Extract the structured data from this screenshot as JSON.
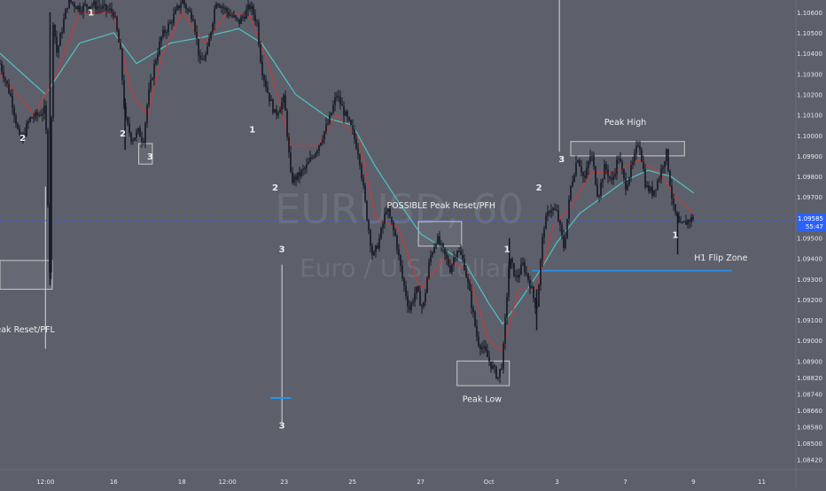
{
  "watermark": {
    "symbol": "EURUSD, 60",
    "name": "Euro / U.S. Dollar"
  },
  "price_tag": {
    "price": "1.09585",
    "countdown": "55:47",
    "color": "#2962ff"
  },
  "colors": {
    "background": "#5d606b",
    "candle": "#131722",
    "ema_fast": "#c23b3b",
    "ema_slow": "#4fc3c3",
    "level_line": "#2196f3",
    "box_border": "#c9c9c9",
    "label_text": "#eeeeee",
    "axis_text": "#e6e6e6"
  },
  "annotations": {
    "peak_reset_pfl": "Peak Reset/PFL",
    "possible_peak": "POSSIBLE Peak Reset/PFH",
    "peak_high": "Peak High",
    "peak_low": "Peak Low",
    "h1_flip_zone": "H1 Flip Zone"
  },
  "wave_labels": [
    {
      "text": "2",
      "x": 0.5,
      "y": 1.09973
    },
    {
      "text": "1",
      "x": 3.5,
      "y": 1.10585
    },
    {
      "text": "2",
      "x": 4.9,
      "y": 1.09995
    },
    {
      "text": "3",
      "x": 6.1,
      "y": 1.09883
    },
    {
      "text": "1",
      "x": 10.6,
      "y": 1.10015
    },
    {
      "text": "2",
      "x": 11.6,
      "y": 1.0973
    },
    {
      "text": "3",
      "x": 11.9,
      "y": 1.0943
    },
    {
      "text": "3",
      "x": 11.9,
      "y": 1.0857
    },
    {
      "text": "2",
      "x": 23.2,
      "y": 1.0973
    },
    {
      "text": "1",
      "x": 21.8,
      "y": 1.0943
    },
    {
      "text": "3",
      "x": 24.2,
      "y": 1.0987
    },
    {
      "text": "1",
      "x": 29.2,
      "y": 1.095
    }
  ],
  "chart_data": {
    "type": "candlestick",
    "x_ticks": [
      {
        "label": "12:00",
        "x": 1.5
      },
      {
        "label": "16",
        "x": 4.5
      },
      {
        "label": "18",
        "x": 7.5
      },
      {
        "label": "12:00",
        "x": 9.5
      },
      {
        "label": "23",
        "x": 12
      },
      {
        "label": "25",
        "x": 15
      },
      {
        "label": "27",
        "x": 18
      },
      {
        "label": "Oct",
        "x": 21
      },
      {
        "label": "3",
        "x": 24
      },
      {
        "label": "7",
        "x": 27
      },
      {
        "label": "9",
        "x": 30
      },
      {
        "label": "11",
        "x": 33
      }
    ],
    "x_range": [
      -0.5,
      34.5
    ],
    "y_range": [
      1.0837,
      1.1066
    ],
    "y_ticks": [
      1.106,
      1.105,
      1.104,
      1.103,
      1.102,
      1.101,
      1.1,
      1.099,
      1.098,
      1.097,
      1.096,
      1.095,
      1.094,
      1.093,
      1.092,
      1.091,
      1.09,
      1.089,
      1.0882,
      1.0874,
      1.0866,
      1.0858,
      1.085,
      1.0842
    ],
    "current_price": 1.09585,
    "price_path": [
      [
        -0.5,
        1.1035
      ],
      [
        0.0,
        1.1018
      ],
      [
        0.4,
        1.0996
      ],
      [
        0.8,
        1.1008
      ],
      [
        1.2,
        1.101
      ],
      [
        1.5,
        1.1013
      ],
      [
        1.7,
        1.0927
      ],
      [
        1.8,
        1.106
      ],
      [
        2.0,
        1.104
      ],
      [
        2.5,
        1.1066
      ],
      [
        3.0,
        1.1062
      ],
      [
        3.5,
        1.1064
      ],
      [
        4.0,
        1.1062
      ],
      [
        4.5,
        1.106
      ],
      [
        4.8,
        1.104
      ],
      [
        5.0,
        1.1008
      ],
      [
        5.3,
        1.0998
      ],
      [
        5.6,
        1.1002
      ],
      [
        5.8,
        1.0997
      ],
      [
        6.0,
        1.1018
      ],
      [
        6.3,
        1.1035
      ],
      [
        6.6,
        1.1048
      ],
      [
        7.0,
        1.1055
      ],
      [
        7.5,
        1.1066
      ],
      [
        7.8,
        1.106
      ],
      [
        8.0,
        1.1058
      ],
      [
        8.3,
        1.1035
      ],
      [
        8.6,
        1.104
      ],
      [
        9.0,
        1.1066
      ],
      [
        9.5,
        1.106
      ],
      [
        10.0,
        1.1055
      ],
      [
        10.5,
        1.1063
      ],
      [
        10.8,
        1.1055
      ],
      [
        11.0,
        1.1033
      ],
      [
        11.3,
        1.102
      ],
      [
        11.6,
        1.101
      ],
      [
        12.0,
        1.1018
      ],
      [
        12.3,
        1.0978
      ],
      [
        12.6,
        1.098
      ],
      [
        13.0,
        1.0985
      ],
      [
        13.5,
        1.0995
      ],
      [
        14.0,
        1.1008
      ],
      [
        14.3,
        1.102
      ],
      [
        14.6,
        1.1012
      ],
      [
        15.0,
        1.1002
      ],
      [
        15.3,
        1.099
      ],
      [
        15.6,
        1.0963
      ],
      [
        15.9,
        1.094
      ],
      [
        16.2,
        1.095
      ],
      [
        16.5,
        1.0965
      ],
      [
        16.9,
        1.095
      ],
      [
        17.2,
        1.093
      ],
      [
        17.5,
        1.0915
      ],
      [
        17.8,
        1.0925
      ],
      [
        18.1,
        1.0915
      ],
      [
        18.4,
        1.094
      ],
      [
        18.7,
        1.095
      ],
      [
        19.0,
        1.0943
      ],
      [
        19.3,
        1.0935
      ],
      [
        19.6,
        1.0945
      ],
      [
        19.9,
        1.0938
      ],
      [
        20.2,
        1.092
      ],
      [
        20.5,
        1.09
      ],
      [
        20.8,
        1.0895
      ],
      [
        21.1,
        1.0888
      ],
      [
        21.4,
        1.0882
      ],
      [
        21.6,
        1.089
      ],
      [
        21.9,
        1.094
      ],
      [
        22.2,
        1.093
      ],
      [
        22.5,
        1.0937
      ],
      [
        22.8,
        1.0928
      ],
      [
        23.1,
        1.0915
      ],
      [
        23.4,
        1.0955
      ],
      [
        23.7,
        1.0965
      ],
      [
        24.0,
        1.0962
      ],
      [
        24.3,
        1.0945
      ],
      [
        24.6,
        1.0975
      ],
      [
        24.9,
        1.099
      ],
      [
        25.2,
        1.0978
      ],
      [
        25.5,
        1.0992
      ],
      [
        25.8,
        1.097
      ],
      [
        26.1,
        1.0985
      ],
      [
        26.4,
        1.0977
      ],
      [
        26.7,
        1.099
      ],
      [
        27.0,
        1.0975
      ],
      [
        27.3,
        1.0985
      ],
      [
        27.6,
        1.0998
      ],
      [
        27.9,
        1.0975
      ],
      [
        28.2,
        1.0972
      ],
      [
        28.5,
        1.098
      ],
      [
        28.8,
        1.0992
      ],
      [
        29.1,
        1.0965
      ],
      [
        29.4,
        1.0955
      ],
      [
        29.7,
        1.0958
      ],
      [
        30.0,
        1.096
      ]
    ],
    "ema_fast_path": [
      [
        -0.5,
        1.103
      ],
      [
        1.0,
        1.101
      ],
      [
        2.0,
        1.103
      ],
      [
        3.0,
        1.106
      ],
      [
        4.5,
        1.106
      ],
      [
        5.3,
        1.102
      ],
      [
        6.0,
        1.101
      ],
      [
        6.6,
        1.1038
      ],
      [
        7.5,
        1.106
      ],
      [
        8.5,
        1.1045
      ],
      [
        9.5,
        1.106
      ],
      [
        10.5,
        1.1058
      ],
      [
        11.3,
        1.1035
      ],
      [
        12.3,
        1.0995
      ],
      [
        13.5,
        1.0995
      ],
      [
        14.3,
        1.101
      ],
      [
        15.3,
        1.0998
      ],
      [
        16.0,
        1.096
      ],
      [
        17.0,
        1.0955
      ],
      [
        18.0,
        1.0925
      ],
      [
        19.0,
        1.094
      ],
      [
        20.0,
        1.0935
      ],
      [
        21.0,
        1.09
      ],
      [
        21.6,
        1.0895
      ],
      [
        22.3,
        1.0925
      ],
      [
        23.1,
        1.0925
      ],
      [
        23.8,
        1.0955
      ],
      [
        24.6,
        1.0965
      ],
      [
        25.5,
        1.0982
      ],
      [
        26.5,
        1.0982
      ],
      [
        27.6,
        1.0988
      ],
      [
        28.5,
        1.0982
      ],
      [
        29.2,
        1.097
      ],
      [
        30.0,
        1.0962
      ]
    ],
    "ema_slow_path": [
      [
        -0.5,
        1.104
      ],
      [
        1.5,
        1.102
      ],
      [
        3.0,
        1.1045
      ],
      [
        4.5,
        1.105
      ],
      [
        5.5,
        1.1035
      ],
      [
        7.0,
        1.1045
      ],
      [
        8.5,
        1.1048
      ],
      [
        10.0,
        1.1052
      ],
      [
        11.0,
        1.1045
      ],
      [
        12.5,
        1.102
      ],
      [
        14.0,
        1.1008
      ],
      [
        15.0,
        1.1005
      ],
      [
        16.0,
        1.0985
      ],
      [
        17.0,
        1.0968
      ],
      [
        18.0,
        1.0952
      ],
      [
        19.0,
        1.0945
      ],
      [
        20.0,
        1.0937
      ],
      [
        21.0,
        1.0918
      ],
      [
        21.6,
        1.0908
      ],
      [
        22.4,
        1.092
      ],
      [
        23.3,
        1.0935
      ],
      [
        24.0,
        1.0948
      ],
      [
        25.0,
        1.0962
      ],
      [
        26.0,
        1.097
      ],
      [
        27.0,
        1.0978
      ],
      [
        28.0,
        1.0983
      ],
      [
        29.0,
        1.098
      ],
      [
        30.0,
        1.0972
      ]
    ],
    "zones": [
      {
        "name": "peak-reset-pfl-box",
        "x0": -0.5,
        "x1": 1.8,
        "y0": 1.0939,
        "y1": 1.0925
      },
      {
        "name": "wave-3-box",
        "x0": 5.6,
        "x1": 6.2,
        "y0": 1.0996,
        "y1": 1.0986
      },
      {
        "name": "possible-peak-box",
        "x0": 17.9,
        "x1": 19.8,
        "y0": 1.0958,
        "y1": 1.0946
      },
      {
        "name": "peak-low-box",
        "x0": 19.6,
        "x1": 21.9,
        "y0": 1.089,
        "y1": 1.0878
      },
      {
        "name": "peak-high-box",
        "x0": 24.6,
        "x1": 29.6,
        "y0": 1.0997,
        "y1": 1.099
      }
    ],
    "h1_flip_level": {
      "y": 1.0934,
      "x0": 22.9,
      "x1": 31.7
    },
    "vertical_markers": [
      {
        "x": 1.5,
        "y0": 1.0896,
        "y1": 1.0975
      },
      {
        "x": 11.9,
        "y0": 1.086,
        "y1": 1.0937
      },
      {
        "x": 24.1,
        "y0": 1.0992,
        "y1": 1.1066
      }
    ],
    "horizontal_marker": {
      "y": 1.0872,
      "x0": 11.4,
      "x1": 12.3
    }
  }
}
